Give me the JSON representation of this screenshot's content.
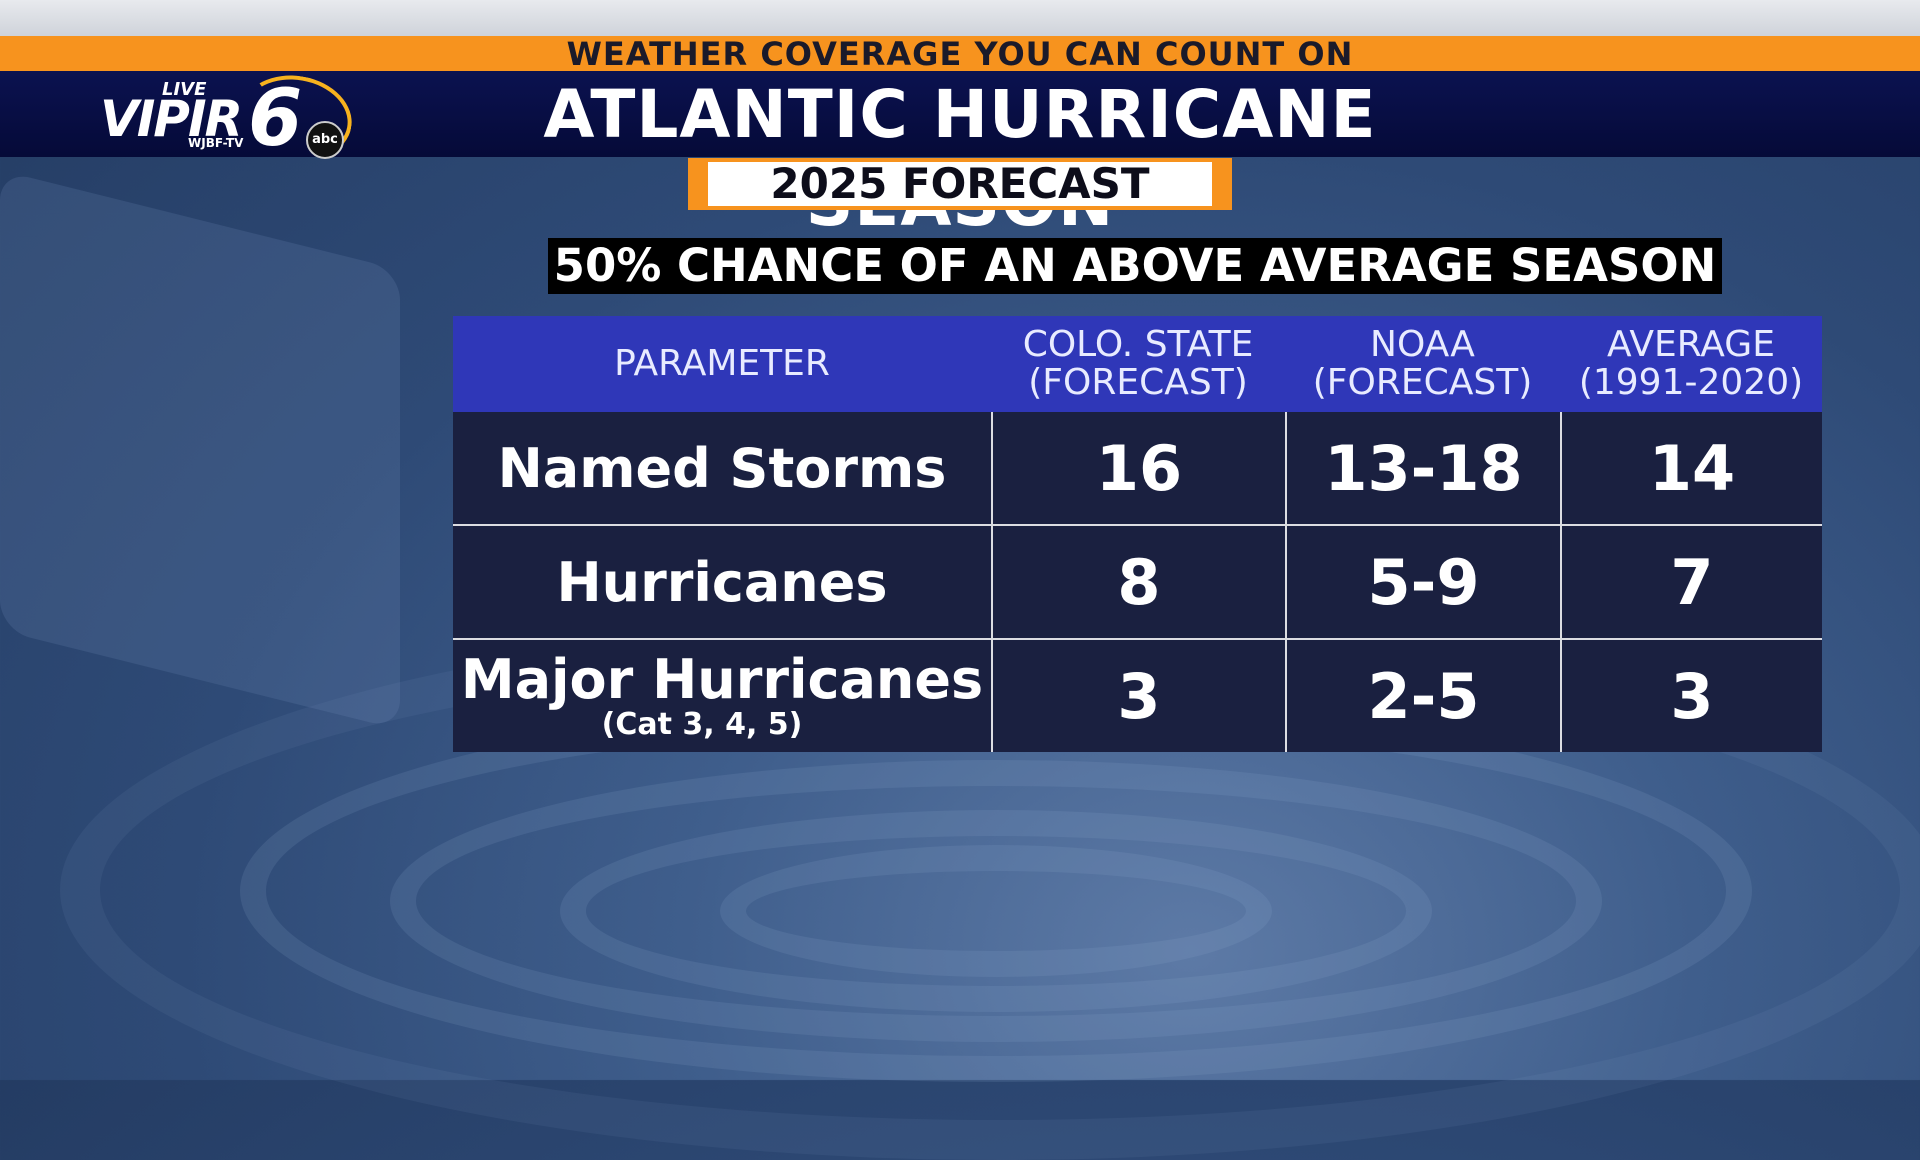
{
  "tagline": "WEATHER COVERAGE YOU CAN COUNT ON",
  "logo": {
    "live": "LIVE",
    "vipir": "VIPIR",
    "number": "6",
    "callsign": "WJBF-TV",
    "network": "abc"
  },
  "title": "ATLANTIC HURRICANE SEASON",
  "subtitle": "2025 FORECAST",
  "chance": "50% CHANCE OF AN ABOVE AVERAGE SEASON",
  "table": {
    "headers": [
      {
        "line1": "PARAMETER",
        "line2": ""
      },
      {
        "line1": "COLO. STATE",
        "line2": "(FORECAST)"
      },
      {
        "line1": "NOAA",
        "line2": "(FORECAST)"
      },
      {
        "line1": "AVERAGE",
        "line2": "(1991-2020)"
      }
    ],
    "rows": [
      {
        "parameter": "Named Storms",
        "note": "",
        "colo_state": "16",
        "noaa": "13-18",
        "average": "14"
      },
      {
        "parameter": "Hurricanes",
        "note": "",
        "colo_state": "8",
        "noaa": "5-9",
        "average": "7"
      },
      {
        "parameter": "Major Hurricanes",
        "note": "(Cat 3, 4, 5)",
        "colo_state": "3",
        "noaa": "2-5",
        "average": "3"
      }
    ]
  },
  "colors": {
    "accent_orange": "#f7931e",
    "header_navy": "#050a38",
    "table_header": "#2f37b8",
    "table_body": "#1a2040"
  }
}
